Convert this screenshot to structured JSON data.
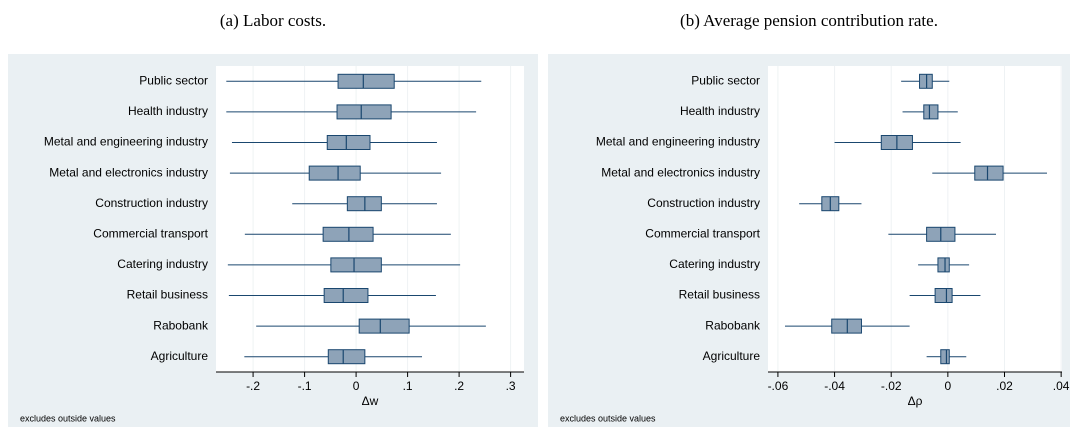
{
  "chart_data": [
    {
      "type": "box",
      "title": "(a) Labor costs.",
      "xlabel": "Δw",
      "note": "excludes outside values",
      "categories": [
        "Public sector",
        "Health industry",
        "Metal and engineering industry",
        "Metal and electronics industry",
        "Construction industry",
        "Commercial transport",
        "Catering industry",
        "Retail business",
        "Rabobank",
        "Agriculture"
      ],
      "min": [
        -0.252,
        -0.252,
        -0.241,
        -0.245,
        -0.124,
        -0.216,
        -0.249,
        -0.247,
        -0.194,
        -0.217
      ],
      "q1": [
        -0.035,
        -0.037,
        -0.056,
        -0.091,
        -0.017,
        -0.064,
        -0.049,
        -0.062,
        0.006,
        -0.054
      ],
      "median": [
        0.014,
        0.01,
        -0.019,
        -0.035,
        0.017,
        -0.014,
        -0.004,
        -0.025,
        0.047,
        -0.025
      ],
      "q3": [
        0.074,
        0.068,
        0.027,
        0.008,
        0.049,
        0.033,
        0.049,
        0.023,
        0.103,
        0.017
      ],
      "max": [
        0.243,
        0.233,
        0.157,
        0.165,
        0.157,
        0.184,
        0.202,
        0.155,
        0.252,
        0.128
      ],
      "color": "#8ea3b8",
      "xlim": [
        -0.272,
        0.326
      ],
      "xticks": [
        {
          "value": -0.2,
          "label": "-.2"
        },
        {
          "value": -0.1,
          "label": "-.1"
        },
        0,
        {
          "value": 0.1,
          "label": ".1"
        },
        {
          "value": 0.2,
          "label": ".2"
        },
        {
          "value": 0.3,
          "label": ".3"
        }
      ],
      "grid": true
    },
    {
      "type": "box",
      "title": "(b) Average pension contribution rate.",
      "xlabel": "Δρ",
      "note": "excludes outside values",
      "categories": [
        "Public sector",
        "Health industry",
        "Metal and engineering industry",
        "Metal and electronics industry",
        "Construction industry",
        "Commercial transport",
        "Catering industry",
        "Retail business",
        "Rabobank",
        "Agriculture"
      ],
      "min": [
        -0.0165,
        -0.016,
        -0.04,
        -0.0055,
        -0.0525,
        -0.021,
        -0.0105,
        -0.0135,
        -0.0575,
        -0.0075
      ],
      "q1": [
        -0.01,
        -0.0085,
        -0.0235,
        0.0095,
        -0.0445,
        -0.0075,
        -0.0035,
        -0.0045,
        -0.041,
        -0.0025
      ],
      "median": [
        -0.0075,
        -0.0065,
        -0.018,
        0.014,
        -0.0415,
        -0.0025,
        -0.001,
        -0.0005,
        -0.0355,
        -0.0005
      ],
      "q3": [
        -0.0055,
        -0.0035,
        -0.0125,
        0.0195,
        -0.0385,
        0.0025,
        0.0005,
        0.0015,
        -0.0305,
        0.0005
      ],
      "max": [
        0.0005,
        0.0035,
        0.0045,
        0.035,
        -0.0305,
        0.017,
        0.0075,
        0.0115,
        -0.0135,
        0.0065
      ],
      "color": "#8ea3b8",
      "xlim": [
        -0.0635,
        0.0403
      ],
      "xticks": [
        {
          "value": -0.06,
          "label": "-.06"
        },
        {
          "value": -0.04,
          "label": "-.04"
        },
        {
          "value": -0.02,
          "label": "-.02"
        },
        0,
        {
          "value": 0.02,
          "label": ".02"
        },
        {
          "value": 0.04,
          "label": ".04"
        }
      ],
      "grid": true
    }
  ]
}
